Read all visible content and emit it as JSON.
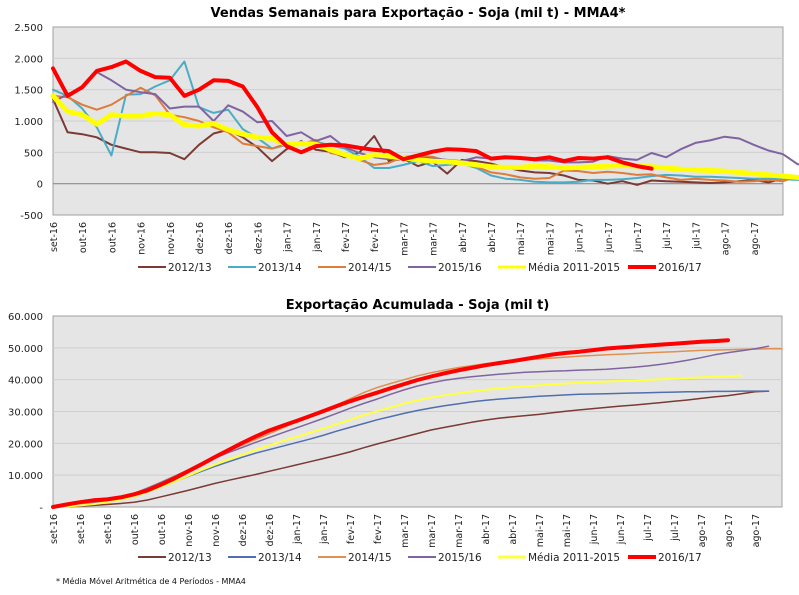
{
  "footnote": "* Média Móvel Aritmética de 4 Períodos - MMA4",
  "chart_data": [
    {
      "type": "line",
      "title": "Vendas Semanais para Exportação - Soja (mil t) - MMA4*",
      "xlabel": "",
      "ylabel": "",
      "ylim": [
        -500,
        2500
      ],
      "yticks": [
        -500,
        0,
        500,
        1000,
        1500,
        2000,
        2500
      ],
      "ytick_labels": [
        "-500",
        "0",
        "500",
        "1.000",
        "1.500",
        "2.000",
        "2.500"
      ],
      "grid": true,
      "legend": "bottom",
      "categories": [
        "set-16",
        "out-16",
        "out-16",
        "nov-16",
        "nov-16",
        "dez-16",
        "dez-16",
        "dez-16",
        "jan-17",
        "jan-17",
        "fev-17",
        "fev-17",
        "mar-17",
        "mar-17",
        "abr-17",
        "abr-17",
        "mai-17",
        "mai-17",
        "jun-17",
        "jun-17",
        "jun-17",
        "jul-17",
        "jul-17",
        "ago-17",
        "ago-17"
      ],
      "points_per_category": 2,
      "series": [
        {
          "name": "2012/13",
          "color": "#7b3a34",
          "values": [
            1350,
            820,
            790,
            740,
            620,
            560,
            500,
            500,
            490,
            390,
            620,
            800,
            860,
            740,
            580,
            360,
            550,
            680,
            540,
            510,
            420,
            500,
            760,
            360,
            400,
            280,
            350,
            160,
            380,
            360,
            320,
            260,
            210,
            180,
            170,
            130,
            60,
            50,
            0,
            40,
            -20,
            50,
            40,
            30,
            20,
            10,
            20,
            40,
            60,
            20,
            80,
            120,
            80,
            60,
            40,
            20,
            -10,
            -30
          ]
        },
        {
          "name": "2013/14",
          "color": "#4bacc6",
          "values": [
            1500,
            1400,
            1200,
            900,
            450,
            1420,
            1430,
            1550,
            1650,
            1950,
            1220,
            1130,
            1180,
            870,
            730,
            560,
            620,
            620,
            670,
            610,
            560,
            430,
            250,
            250,
            300,
            360,
            280,
            300,
            320,
            250,
            130,
            80,
            60,
            30,
            20,
            20,
            30,
            60,
            60,
            70,
            90,
            120,
            140,
            130,
            110,
            110,
            100,
            90,
            80,
            80,
            70,
            60,
            60,
            50,
            40,
            -60,
            -80
          ]
        },
        {
          "name": "2014/15",
          "color": "#e07b39",
          "values": [
            1400,
            1380,
            1260,
            1180,
            1260,
            1400,
            1530,
            1410,
            1100,
            1060,
            1000,
            900,
            820,
            640,
            600,
            560,
            640,
            630,
            700,
            490,
            450,
            380,
            300,
            330,
            430,
            440,
            430,
            360,
            330,
            270,
            180,
            150,
            100,
            80,
            90,
            210,
            200,
            170,
            190,
            170,
            140,
            150,
            100,
            60,
            80,
            60,
            50,
            30,
            40,
            60,
            40,
            120,
            60,
            40,
            -100,
            10,
            30
          ]
        },
        {
          "name": "2015/16",
          "color": "#8064a2",
          "values": [
            1300,
            1430,
            1520,
            1780,
            1650,
            1500,
            1460,
            1430,
            1200,
            1230,
            1230,
            1000,
            1250,
            1150,
            980,
            1000,
            760,
            820,
            680,
            760,
            580,
            490,
            420,
            390,
            430,
            420,
            400,
            380,
            360,
            420,
            400,
            420,
            410,
            370,
            370,
            340,
            340,
            350,
            440,
            400,
            380,
            490,
            420,
            550,
            650,
            690,
            750,
            720,
            620,
            530,
            470,
            310,
            290,
            270,
            230,
            220,
            120,
            60
          ]
        },
        {
          "name": "Média 2011-2015",
          "color": "#ffff00",
          "values": [
            1400,
            1150,
            1100,
            950,
            1100,
            1080,
            1080,
            1120,
            1100,
            940,
            920,
            960,
            860,
            790,
            740,
            720,
            620,
            640,
            630,
            540,
            460,
            400,
            460,
            440,
            410,
            380,
            360,
            350,
            330,
            300,
            270,
            260,
            260,
            280,
            270,
            250,
            260,
            270,
            280,
            290,
            280,
            270,
            250,
            230,
            220,
            210,
            200,
            180,
            160,
            140,
            120,
            100,
            70,
            40,
            10,
            -10
          ]
        },
        {
          "name": "2016/17",
          "color": "#ff0000",
          "values": [
            1840,
            1400,
            1540,
            1800,
            1860,
            1950,
            1800,
            1700,
            1690,
            1400,
            1500,
            1650,
            1640,
            1550,
            1220,
            820,
            600,
            500,
            600,
            620,
            610,
            570,
            540,
            520,
            390,
            450,
            510,
            550,
            540,
            520,
            400,
            420,
            410,
            390,
            420,
            360,
            410,
            400,
            420,
            340,
            280,
            240
          ]
        }
      ]
    },
    {
      "type": "line",
      "title": "Exportação Acumulada - Soja (mil t)",
      "xlabel": "",
      "ylabel": "",
      "ylim": [
        0,
        60000
      ],
      "yticks": [
        0,
        10000,
        20000,
        30000,
        40000,
        50000,
        60000
      ],
      "ytick_labels": [
        "-",
        "10.000",
        "20.000",
        "30.000",
        "40.000",
        "50.000",
        "60.000"
      ],
      "grid": true,
      "legend": "bottom",
      "categories": [
        "set-16",
        "set-16",
        "set-16",
        "out-16",
        "out-16",
        "nov-16",
        "nov-16",
        "dez-16",
        "dez-16",
        "jan-17",
        "jan-17",
        "fev-17",
        "fev-17",
        "mar-17",
        "mar-17",
        "mar-17",
        "abr-17",
        "abr-17",
        "mai-17",
        "mai-17",
        "jun-17",
        "jun-17",
        "jul-17",
        "jul-17",
        "ago-17",
        "ago-17",
        "ago-17"
      ],
      "points_per_category": 2,
      "series": [
        {
          "name": "2012/13",
          "color": "#7b3a34",
          "values": [
            0,
            100,
            300,
            500,
            800,
            1100,
            1500,
            2200,
            3200,
            4200,
            5200,
            6300,
            7400,
            8400,
            9300,
            10200,
            11200,
            12200,
            13200,
            14200,
            15200,
            16200,
            17300,
            18600,
            19800,
            20900,
            22000,
            23100,
            24200,
            25000,
            25800,
            26600,
            27300,
            27900,
            28300,
            28700,
            29100,
            29600,
            30100,
            30500,
            30900,
            31300,
            31700,
            32000,
            32400,
            32800,
            33200,
            33600,
            34100,
            34600,
            35000,
            35600,
            36200,
            36400
          ]
        },
        {
          "name": "2013/14",
          "color": "#4f6fb0",
          "values": [
            0,
            200,
            600,
            1100,
            1700,
            2500,
            3600,
            5000,
            6500,
            8000,
            9600,
            11200,
            12800,
            14200,
            15600,
            16900,
            18000,
            19100,
            20200,
            21300,
            22500,
            23800,
            25000,
            26200,
            27400,
            28400,
            29400,
            30300,
            31100,
            31800,
            32400,
            33000,
            33500,
            33900,
            34200,
            34500,
            34800,
            35000,
            35200,
            35400,
            35500,
            35600,
            35700,
            35800,
            35900,
            36000,
            36100,
            36200,
            36200,
            36300,
            36300,
            36400,
            36400,
            36400
          ]
        },
        {
          "name": "2014/15",
          "color": "#e0904f",
          "values": [
            0,
            200,
            700,
            1300,
            2000,
            3000,
            4300,
            6000,
            7800,
            9700,
            11600,
            13600,
            15600,
            17600,
            19400,
            21200,
            23000,
            24800,
            26700,
            28500,
            30200,
            32000,
            34000,
            35900,
            37500,
            38800,
            40000,
            41200,
            42200,
            43000,
            43800,
            44400,
            45000,
            45400,
            45800,
            46200,
            46500,
            46800,
            47100,
            47400,
            47600,
            47800,
            48000,
            48200,
            48400,
            48600,
            48800,
            49000,
            49200,
            49300,
            49400,
            49500,
            49600,
            49700,
            49700
          ]
        },
        {
          "name": "2015/16",
          "color": "#8064a2",
          "values": [
            0,
            200,
            600,
            1200,
            1900,
            2900,
            4200,
            5900,
            7700,
            9600,
            11600,
            13500,
            15400,
            17100,
            18700,
            20300,
            21800,
            23300,
            24800,
            26300,
            27800,
            29400,
            31000,
            32500,
            33900,
            35400,
            36800,
            38000,
            39000,
            39800,
            40400,
            40900,
            41300,
            41700,
            42000,
            42300,
            42500,
            42700,
            42800,
            43000,
            43100,
            43300,
            43600,
            43900,
            44300,
            44800,
            45400,
            46100,
            46900,
            47800,
            48500,
            49100,
            49700,
            50500
          ]
        },
        {
          "name": "Média 2011-2015",
          "color": "#ffff44",
          "values": [
            0,
            150,
            500,
            900,
            1500,
            2300,
            3300,
            4700,
            6300,
            8000,
            9800,
            11600,
            13300,
            14900,
            16400,
            17900,
            19300,
            20700,
            22000,
            23300,
            24600,
            26000,
            27400,
            28800,
            30100,
            31300,
            32500,
            33500,
            34400,
            35100,
            35700,
            36300,
            36800,
            37200,
            37600,
            37900,
            38200,
            38500,
            38800,
            39000,
            39200,
            39400,
            39600,
            39700,
            39900,
            40100,
            40300,
            40500,
            40700,
            40900,
            41100,
            41300
          ]
        },
        {
          "name": "2016/17",
          "color": "#ff0000",
          "values": [
            0,
            800,
            1500,
            2100,
            2400,
            3000,
            4000,
            5200,
            7000,
            9000,
            11200,
            13400,
            15700,
            17900,
            20100,
            22100,
            24000,
            25500,
            27000,
            28500,
            30100,
            31700,
            33200,
            34600,
            35900,
            37300,
            38600,
            39900,
            41000,
            42000,
            42900,
            43700,
            44500,
            45200,
            45800,
            46500,
            47200,
            47900,
            48400,
            48800,
            49300,
            49800,
            50100,
            50400,
            50700,
            51000,
            51300,
            51600,
            51900,
            52100,
            52400
          ]
        }
      ]
    }
  ]
}
